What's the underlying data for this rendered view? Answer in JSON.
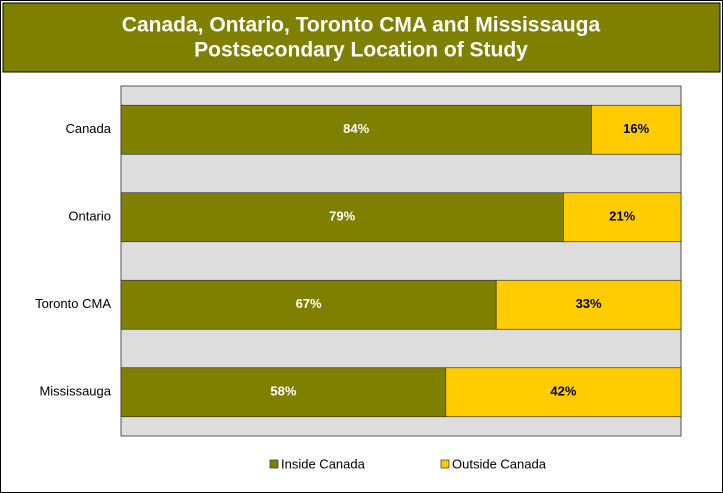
{
  "chart_data": {
    "type": "stacked_barh",
    "title": [
      "Canada, Ontario, Toronto CMA and Mississauga",
      "Postsecondary Location of Study"
    ],
    "categories": [
      "Canada",
      "Ontario",
      "Toronto CMA",
      "Mississauga"
    ],
    "xlim": [
      0,
      100
    ],
    "series": [
      {
        "name": "Inside Canada",
        "color": "#808000",
        "values": [
          84,
          79,
          67,
          58
        ],
        "value_labels": [
          "84%",
          "79%",
          "67%",
          "58%"
        ]
      },
      {
        "name": "Outside Canada",
        "color": "#FFCC00",
        "values": [
          16,
          21,
          33,
          42
        ],
        "value_labels": [
          "16%",
          "21%",
          "33%",
          "42%"
        ]
      }
    ],
    "legend": "bottom"
  }
}
